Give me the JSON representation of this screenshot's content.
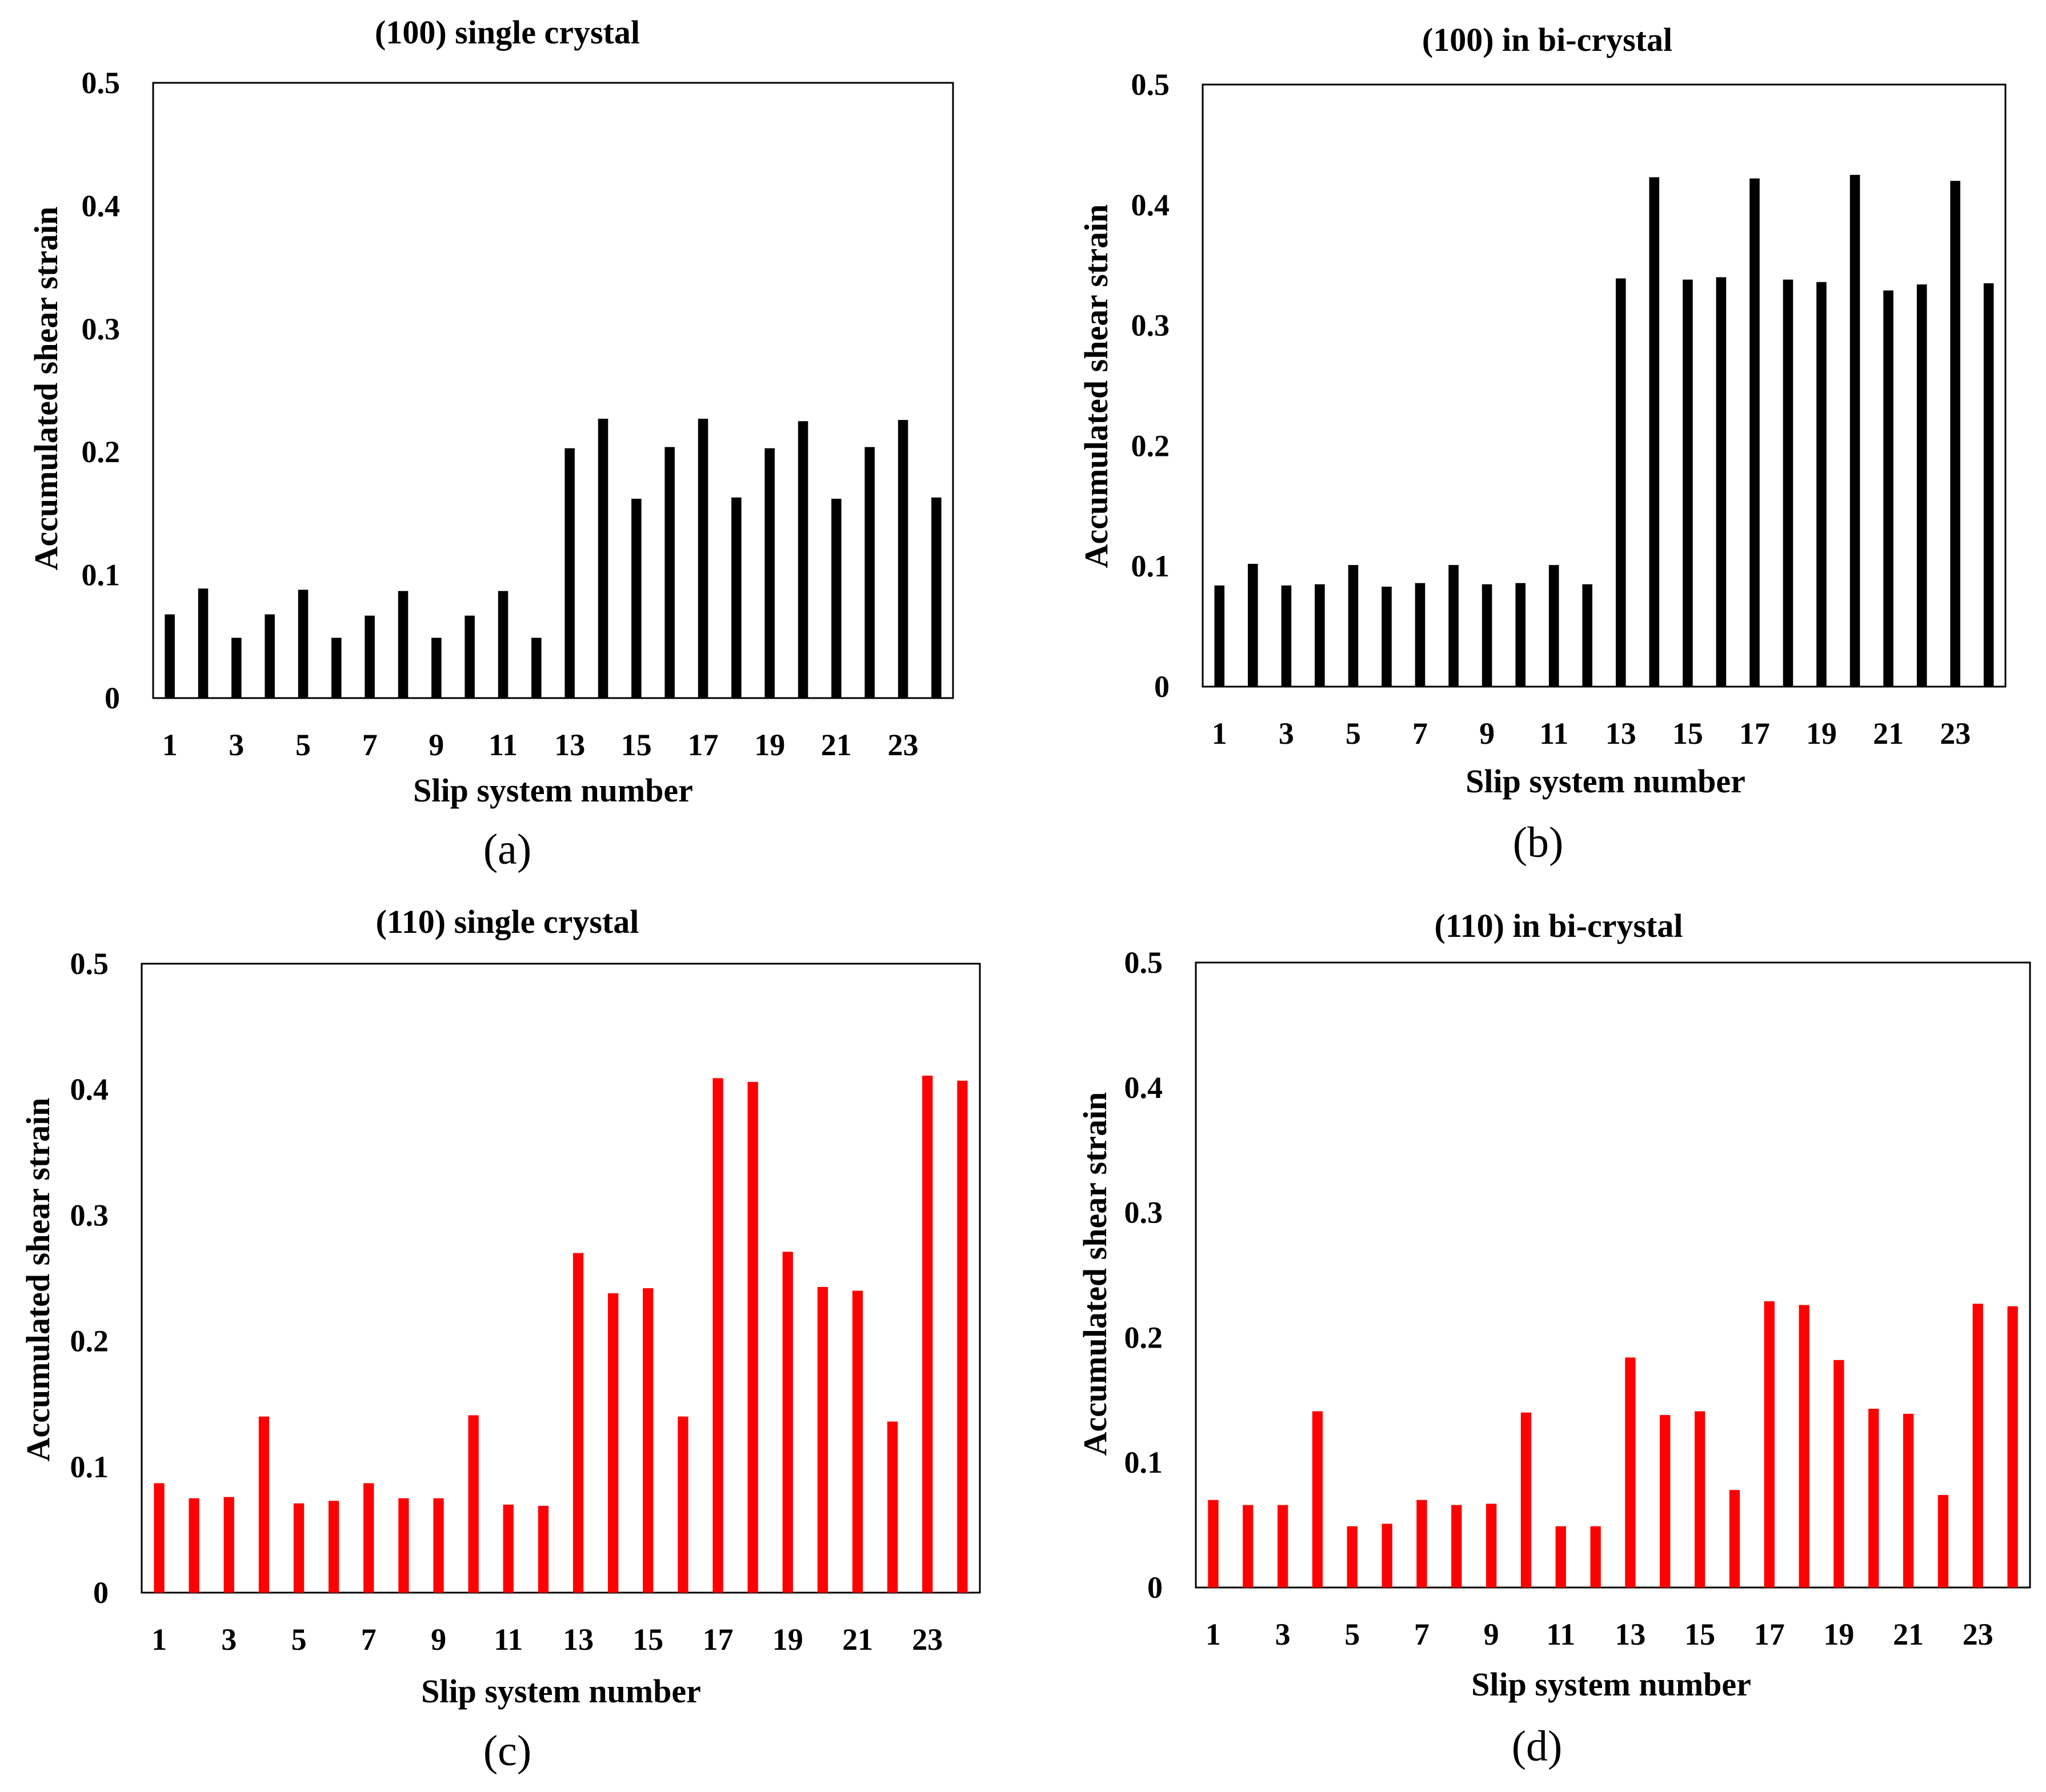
{
  "chart_data": [
    {
      "type": "bar",
      "panel_label": "(a)",
      "title": "(100) single crystal",
      "xlabel": "Slip system number",
      "ylabel": "Accumulated  shear strain",
      "categories": [
        1,
        2,
        3,
        4,
        5,
        6,
        7,
        8,
        9,
        10,
        11,
        12,
        13,
        14,
        15,
        16,
        17,
        18,
        19,
        20,
        21,
        22,
        23,
        24
      ],
      "x_tick_labels": [
        "1",
        "3",
        "5",
        "7",
        "9",
        "11",
        "13",
        "15",
        "17",
        "19",
        "21",
        "23"
      ],
      "y_tick_labels": [
        "0",
        "0.1",
        "0.2",
        "0.3",
        "0.4",
        "0.5"
      ],
      "values": [
        0.068,
        0.089,
        0.049,
        0.068,
        0.088,
        0.049,
        0.067,
        0.087,
        0.049,
        0.067,
        0.087,
        0.049,
        0.203,
        0.227,
        0.162,
        0.204,
        0.227,
        0.163,
        0.203,
        0.225,
        0.162,
        0.204,
        0.226,
        0.163
      ],
      "ylim": [
        0,
        0.5
      ],
      "bar_color": "#000000"
    },
    {
      "type": "bar",
      "panel_label": "(b)",
      "title": "(100) in bi-crystal",
      "xlabel": "Slip system number",
      "ylabel": "Accumulated  shear strain",
      "categories": [
        1,
        2,
        3,
        4,
        5,
        6,
        7,
        8,
        9,
        10,
        11,
        12,
        13,
        14,
        15,
        16,
        17,
        18,
        19,
        20,
        21,
        22,
        23,
        24
      ],
      "x_tick_labels": [
        "1",
        "3",
        "5",
        "7",
        "9",
        "11",
        "13",
        "15",
        "17",
        "19",
        "21",
        "23"
      ],
      "y_tick_labels": [
        "0",
        "0.1",
        "0.2",
        "0.3",
        "0.4",
        "0.5"
      ],
      "values": [
        0.084,
        0.102,
        0.084,
        0.085,
        0.101,
        0.083,
        0.086,
        0.101,
        0.085,
        0.086,
        0.101,
        0.085,
        0.339,
        0.423,
        0.338,
        0.34,
        0.422,
        0.338,
        0.336,
        0.425,
        0.329,
        0.334,
        0.42,
        0.335
      ],
      "ylim": [
        0,
        0.5
      ],
      "bar_color": "#000000"
    },
    {
      "type": "bar",
      "panel_label": "(c)",
      "title": "(110) single crystal",
      "xlabel": "Slip system number",
      "ylabel": "Accumulated shear strain",
      "categories": [
        1,
        2,
        3,
        4,
        5,
        6,
        7,
        8,
        9,
        10,
        11,
        12,
        13,
        14,
        15,
        16,
        17,
        18,
        19,
        20,
        21,
        22,
        23,
        24
      ],
      "x_tick_labels": [
        "1",
        "3",
        "5",
        "7",
        "9",
        "11",
        "13",
        "15",
        "17",
        "19",
        "21",
        "23"
      ],
      "y_tick_labels": [
        "0",
        "0.1",
        "0.2",
        "0.3",
        "0.4",
        "0.5"
      ],
      "values": [
        0.087,
        0.075,
        0.076,
        0.14,
        0.071,
        0.073,
        0.087,
        0.075,
        0.075,
        0.141,
        0.07,
        0.069,
        0.27,
        0.238,
        0.242,
        0.14,
        0.409,
        0.406,
        0.271,
        0.243,
        0.24,
        0.136,
        0.411,
        0.407
      ],
      "ylim": [
        0,
        0.5
      ],
      "bar_color": "#ff0000"
    },
    {
      "type": "bar",
      "panel_label": "(d)",
      "title": "(110) in bi-crystal",
      "xlabel": "Slip system number",
      "ylabel": "Accumulated shear strain",
      "categories": [
        1,
        2,
        3,
        4,
        5,
        6,
        7,
        8,
        9,
        10,
        11,
        12,
        13,
        14,
        15,
        16,
        17,
        18,
        19,
        20,
        21,
        22,
        23,
        24
      ],
      "x_tick_labels": [
        "1",
        "3",
        "5",
        "7",
        "9",
        "11",
        "13",
        "15",
        "17",
        "19",
        "21",
        "23"
      ],
      "y_tick_labels": [
        "0",
        "0.1",
        "0.2",
        "0.3",
        "0.4",
        "0.5"
      ],
      "values": [
        0.07,
        0.066,
        0.066,
        0.141,
        0.049,
        0.051,
        0.07,
        0.066,
        0.067,
        0.14,
        0.049,
        0.049,
        0.184,
        0.138,
        0.141,
        0.078,
        0.229,
        0.226,
        0.182,
        0.143,
        0.139,
        0.074,
        0.227,
        0.225
      ],
      "ylim": [
        0,
        0.5
      ],
      "bar_color": "#ff0000"
    }
  ]
}
